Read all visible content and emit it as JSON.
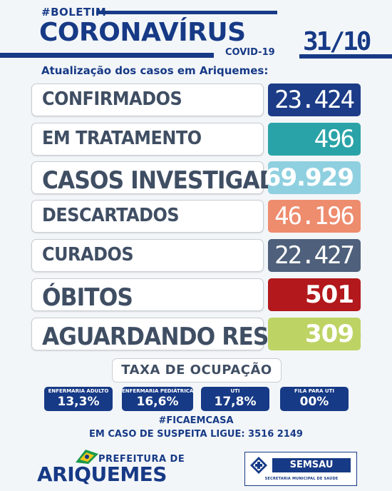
{
  "header": {
    "boletim": "#BOLETIM",
    "title": "CORONAVÍRUS",
    "covid": "COVID-19",
    "date": "31/10",
    "subtitle": "Atualização dos casos em Ariquemes:"
  },
  "rows": [
    {
      "label": "CONFIRMADOS",
      "value": "23.424",
      "color": "#1c3c87"
    },
    {
      "label": "EM TRATAMENTO",
      "value": "496",
      "color": "#2aa3a8"
    },
    {
      "label": "CASOS INVESTIGADOS",
      "value": "69.929",
      "color": "#8fd0e0"
    },
    {
      "label": "DESCARTADOS",
      "value": "46.196",
      "color": "#ee8c6e"
    },
    {
      "label": "CURADOS",
      "value": "22.427",
      "color": "#4e607b"
    },
    {
      "label": "ÓBITOS",
      "value": "501",
      "color": "#b2181c"
    },
    {
      "label": "AGUARDANDO RESULTADO",
      "value": "309",
      "color": "#bdd465"
    }
  ],
  "taxa": {
    "title": "TAXA DE OCUPAÇÃO",
    "items": [
      {
        "label": "ENFERMARIA ADULTO",
        "value": "13,3%"
      },
      {
        "label": "ENFERMARIA PEDIÁTRICA",
        "value": "16,6%"
      },
      {
        "label": "UTI",
        "value": "17,8%"
      },
      {
        "label": "FILA PARA UTI",
        "value": "00%"
      }
    ]
  },
  "footer": {
    "hashtag": "#FICAEMCASA",
    "contact": "EM CASO DE SUSPEITA LIGUE: 3516 2149",
    "pref_small": "PREFEITURA DE",
    "pref_big": "ARIQUEMES",
    "semsau": "SEMSAU",
    "semsau_sub": "SECRETARIA MUNICIPAL DE SAÚDE"
  }
}
